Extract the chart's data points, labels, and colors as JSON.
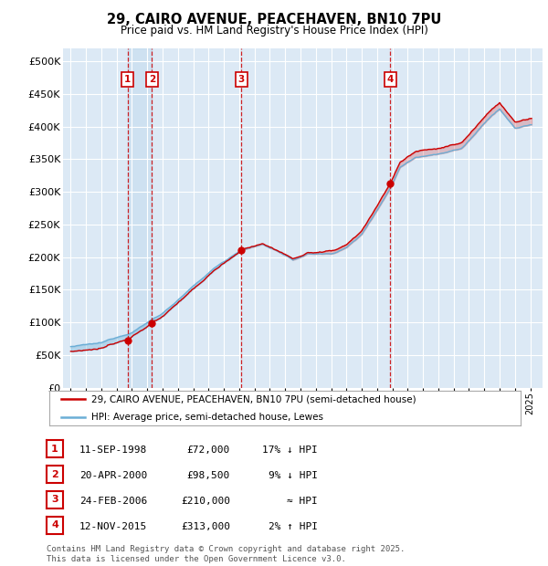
{
  "title": "29, CAIRO AVENUE, PEACEHAVEN, BN10 7PU",
  "subtitle": "Price paid vs. HM Land Registry's House Price Index (HPI)",
  "legend_property": "29, CAIRO AVENUE, PEACEHAVEN, BN10 7PU (semi-detached house)",
  "legend_hpi": "HPI: Average price, semi-detached house, Lewes",
  "footer": "Contains HM Land Registry data © Crown copyright and database right 2025.\nThis data is licensed under the Open Government Licence v3.0.",
  "transactions": [
    {
      "num": 1,
      "date": "11-SEP-1998",
      "price": 72000,
      "year": 1998.71,
      "rel": "17% ↓ HPI"
    },
    {
      "num": 2,
      "date": "20-APR-2000",
      "price": 98500,
      "year": 2000.3,
      "rel": "9% ↓ HPI"
    },
    {
      "num": 3,
      "date": "24-FEB-2006",
      "price": 210000,
      "year": 2006.15,
      "rel": "≈ HPI"
    },
    {
      "num": 4,
      "date": "12-NOV-2015",
      "price": 313000,
      "year": 2015.87,
      "rel": "2% ↑ HPI"
    }
  ],
  "hpi_color": "#6baed6",
  "property_color": "#cc0000",
  "vline_color": "#cc0000",
  "dot_color": "#cc0000",
  "marker_box_color": "#cc0000",
  "ylim": [
    0,
    520000
  ],
  "yticks": [
    0,
    50000,
    100000,
    150000,
    200000,
    250000,
    300000,
    350000,
    400000,
    450000,
    500000
  ],
  "ytick_labels": [
    "£0",
    "£50K",
    "£100K",
    "£150K",
    "£200K",
    "£250K",
    "£300K",
    "£350K",
    "£400K",
    "£450K",
    "£500K"
  ],
  "xlim_start": 1994.5,
  "xlim_end": 2025.8,
  "background_color": "#ffffff",
  "plot_bg_color": "#dce9f5",
  "grid_color": "#ffffff"
}
